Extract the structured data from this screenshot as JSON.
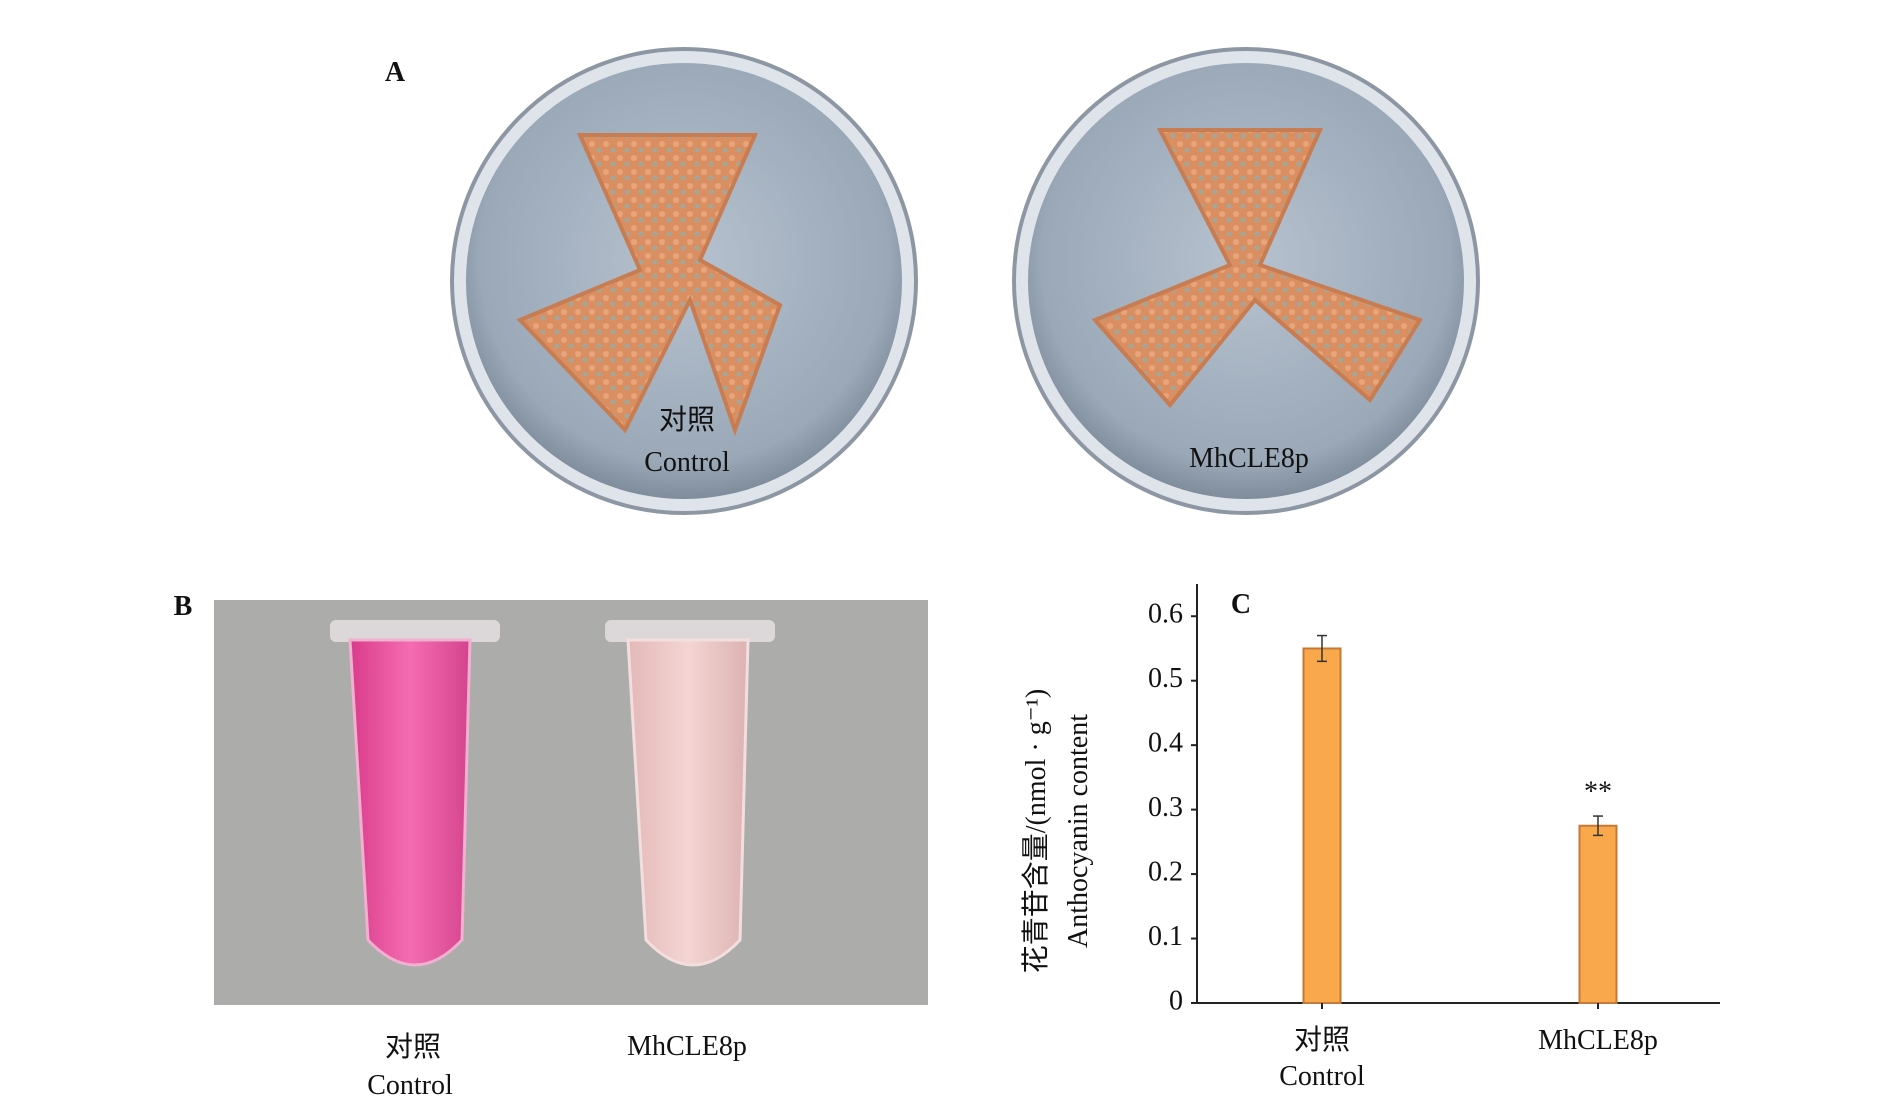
{
  "panel_a": {
    "label": "A",
    "plates": [
      {
        "label": "对照",
        "sublabel": "Control"
      },
      {
        "label": "MhCLE8p"
      }
    ]
  },
  "panel_b": {
    "label": "B",
    "tubes": [
      {
        "label": "对照",
        "sublabel": "Control"
      },
      {
        "label": "MhCLE8p"
      }
    ]
  },
  "chart_data": {
    "type": "bar",
    "panel_label": "C",
    "ylabel": [
      "花青苷含量/(nmol · g⁻¹)",
      "Anthocyanin content"
    ],
    "categories": [
      "对照\nControl",
      "MhCLE8p"
    ],
    "values": [
      0.55,
      0.275
    ],
    "errors": [
      0.02,
      0.015
    ],
    "value_annotations": [
      null,
      "**"
    ],
    "color": "#f9a94b",
    "edge_color": "#c47a36",
    "ylim": [
      0,
      0.65
    ],
    "yticks": [
      0,
      0.1,
      0.2,
      0.3,
      0.4,
      0.5,
      0.6
    ],
    "grid": false
  }
}
